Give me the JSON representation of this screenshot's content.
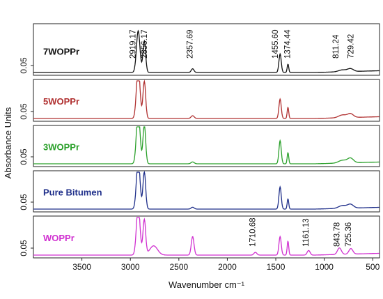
{
  "chart_data": {
    "type": "line",
    "xlabel": "Wavenumber cm⁻¹",
    "ylabel": "Absorbance Units",
    "xlim": [
      4000,
      430
    ],
    "x_reversed": true,
    "x_ticks": [
      3500,
      3000,
      2500,
      2000,
      1500,
      1000,
      500
    ],
    "y_tick_label": "0.05",
    "stacked": true,
    "panels": [
      {
        "name": "7WOPPr",
        "color": "#111111",
        "baseline": 0.005,
        "peaks": [
          {
            "x": 2919.17,
            "y": 0.045,
            "w": 18
          },
          {
            "x": 2856.17,
            "y": 0.034,
            "w": 14
          },
          {
            "x": 2357.69,
            "y": 0.004,
            "w": 14
          },
          {
            "x": 1455.6,
            "y": 0.02,
            "w": 12
          },
          {
            "x": 1374.44,
            "y": 0.009,
            "w": 8
          },
          {
            "x": 811.24,
            "y": 0.002,
            "w": 40
          },
          {
            "x": 729.42,
            "y": 0.003,
            "w": 30
          }
        ],
        "annotations": [
          "2919.17",
          "2856.17",
          "2357.69",
          "1455.60",
          "1374.44",
          "811.24",
          "729.42"
        ]
      },
      {
        "name": "5WOPPr",
        "color": "#b03030",
        "baseline": 0.005,
        "peaks": [
          {
            "x": 2919.17,
            "y": 0.057,
            "w": 18
          },
          {
            "x": 2856.17,
            "y": 0.04,
            "w": 14
          },
          {
            "x": 2357.69,
            "y": 0.003,
            "w": 16
          },
          {
            "x": 1455.6,
            "y": 0.021,
            "w": 12
          },
          {
            "x": 1374.44,
            "y": 0.012,
            "w": 8
          },
          {
            "x": 811.24,
            "y": 0.003,
            "w": 40
          },
          {
            "x": 729.42,
            "y": 0.004,
            "w": 30
          }
        ],
        "annotations": []
      },
      {
        "name": "3WOPPr",
        "color": "#2aa02a",
        "baseline": 0.005,
        "peaks": [
          {
            "x": 2919.17,
            "y": 0.06,
            "w": 18
          },
          {
            "x": 2856.17,
            "y": 0.042,
            "w": 14
          },
          {
            "x": 2357.69,
            "y": 0.002,
            "w": 16
          },
          {
            "x": 1455.6,
            "y": 0.025,
            "w": 12
          },
          {
            "x": 1374.44,
            "y": 0.012,
            "w": 8
          },
          {
            "x": 811.24,
            "y": 0.003,
            "w": 40
          },
          {
            "x": 729.42,
            "y": 0.005,
            "w": 30
          }
        ],
        "annotations": []
      },
      {
        "name": "Pure Bitumen",
        "color": "#1f2f8a",
        "baseline": 0.005,
        "peaks": [
          {
            "x": 2919.17,
            "y": 0.055,
            "w": 18
          },
          {
            "x": 2856.17,
            "y": 0.04,
            "w": 14
          },
          {
            "x": 2357.69,
            "y": 0.002,
            "w": 16
          },
          {
            "x": 1455.6,
            "y": 0.024,
            "w": 12
          },
          {
            "x": 1374.44,
            "y": 0.011,
            "w": 8
          },
          {
            "x": 811.24,
            "y": 0.003,
            "w": 40
          },
          {
            "x": 729.42,
            "y": 0.004,
            "w": 30
          }
        ],
        "annotations": []
      },
      {
        "name": "WOPPr",
        "color": "#d030d0",
        "baseline": 0.005,
        "peaks": [
          {
            "x": 2919.17,
            "y": 0.055,
            "w": 18
          },
          {
            "x": 2856.17,
            "y": 0.038,
            "w": 14
          },
          {
            "x": 2760,
            "y": 0.01,
            "w": 40
          },
          {
            "x": 2357.69,
            "y": 0.02,
            "w": 14
          },
          {
            "x": 1710.68,
            "y": 0.003,
            "w": 15
          },
          {
            "x": 1455.6,
            "y": 0.02,
            "w": 12
          },
          {
            "x": 1374.44,
            "y": 0.015,
            "w": 8
          },
          {
            "x": 1161.13,
            "y": 0.005,
            "w": 15
          },
          {
            "x": 843.78,
            "y": 0.007,
            "w": 20
          },
          {
            "x": 725.36,
            "y": 0.006,
            "w": 20
          }
        ],
        "annotations": [
          "1710.68",
          "1161.13",
          "843.78",
          "725.36"
        ]
      }
    ]
  }
}
